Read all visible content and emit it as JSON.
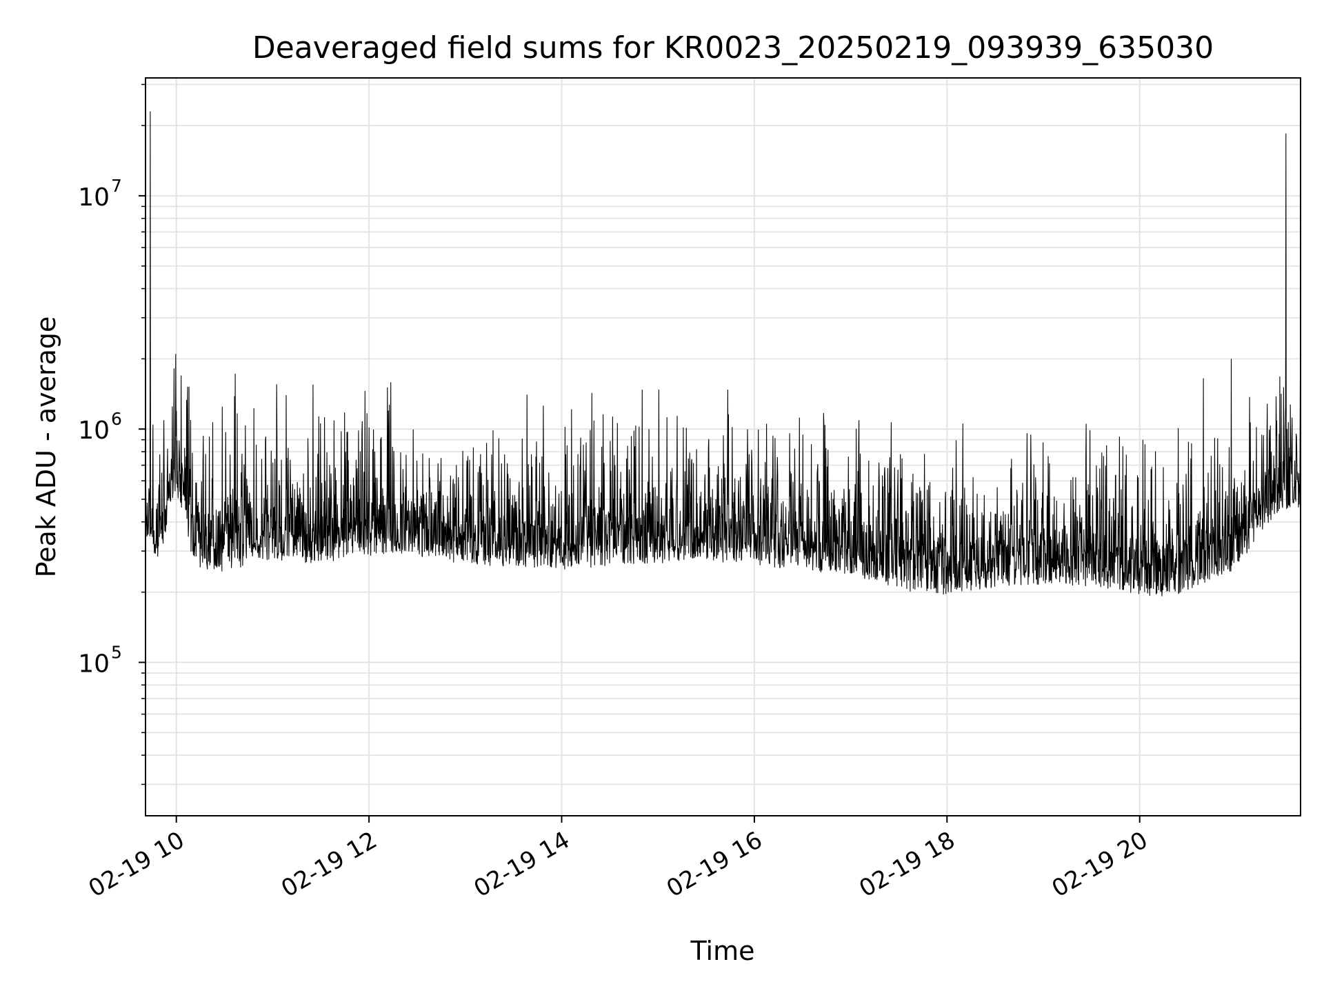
{
  "chart_data": {
    "type": "line",
    "title": "Deaveraged field sums for KR0023_20250219_093939_635030",
    "xlabel": "Time",
    "ylabel": "Peak ADU - average",
    "yscale": "log",
    "xlim_hours": [
      9.68,
      21.67
    ],
    "ylim": [
      22000,
      32000000
    ],
    "grid": true,
    "line_color": "#000000",
    "x_ticks": [
      {
        "hour": 10,
        "label": "02-19 10"
      },
      {
        "hour": 12,
        "label": "02-19 12"
      },
      {
        "hour": 14,
        "label": "02-19 14"
      },
      {
        "hour": 16,
        "label": "02-19 16"
      },
      {
        "hour": 18,
        "label": "02-19 18"
      },
      {
        "hour": 20,
        "label": "02-19 20"
      }
    ],
    "y_ticks": [
      {
        "value": 100000,
        "base": "10",
        "exp": "5"
      },
      {
        "value": 1000000,
        "base": "10",
        "exp": "6"
      },
      {
        "value": 10000000,
        "base": "10",
        "exp": "7"
      }
    ],
    "series": [
      {
        "name": "Deaveraged field sum",
        "x_hours": [
          9.69,
          9.72,
          9.75,
          9.8,
          9.85,
          9.9,
          9.95,
          10.0,
          10.05,
          10.1,
          10.15,
          10.2,
          10.3,
          10.4,
          10.5,
          10.6,
          10.7,
          10.8,
          10.9,
          11.0,
          11.2,
          11.4,
          11.6,
          11.8,
          12.0,
          12.2,
          12.4,
          12.6,
          12.8,
          13.0,
          13.2,
          13.4,
          13.6,
          13.8,
          14.0,
          14.2,
          14.4,
          14.6,
          14.8,
          15.0,
          15.2,
          15.4,
          15.6,
          15.8,
          16.0,
          16.2,
          16.4,
          16.6,
          16.8,
          17.0,
          17.2,
          17.4,
          17.6,
          17.8,
          18.0,
          18.2,
          18.4,
          18.6,
          18.8,
          19.0,
          19.2,
          19.4,
          19.6,
          19.8,
          20.0,
          20.2,
          20.4,
          20.6,
          20.8,
          21.0,
          21.2,
          21.4,
          21.6,
          21.66
        ],
        "values": [
          330000,
          350000,
          300000,
          280000,
          310000,
          360000,
          480000,
          520000,
          420000,
          350000,
          300000,
          260000,
          250000,
          240000,
          245000,
          250000,
          255000,
          260000,
          265000,
          270000,
          270000,
          265000,
          270000,
          280000,
          285000,
          290000,
          285000,
          280000,
          270000,
          265000,
          260000,
          255000,
          255000,
          250000,
          250000,
          250000,
          255000,
          260000,
          265000,
          265000,
          270000,
          270000,
          270000,
          265000,
          260000,
          255000,
          250000,
          245000,
          240000,
          235000,
          225000,
          210000,
          200000,
          195000,
          195000,
          200000,
          205000,
          210000,
          215000,
          215000,
          215000,
          210000,
          205000,
          200000,
          195000,
          190000,
          195000,
          210000,
          230000,
          250000,
          330000,
          420000,
          470000,
          450000
        ]
      }
    ],
    "spikes": [
      {
        "hour": 9.73,
        "value": 23000000
      },
      {
        "hour": 9.96,
        "value": 1250000
      },
      {
        "hour": 10.38,
        "value": 1070000
      },
      {
        "hour": 11.93,
        "value": 1080000
      },
      {
        "hour": 12.2,
        "value": 1200000
      },
      {
        "hour": 15.4,
        "value": 820000
      },
      {
        "hour": 20.66,
        "value": 1650000
      },
      {
        "hour": 20.95,
        "value": 2000000
      },
      {
        "hour": 21.52,
        "value": 18500000
      }
    ],
    "noise_band": {
      "low_factor": 0.28,
      "high_factor": 2.3
    }
  }
}
